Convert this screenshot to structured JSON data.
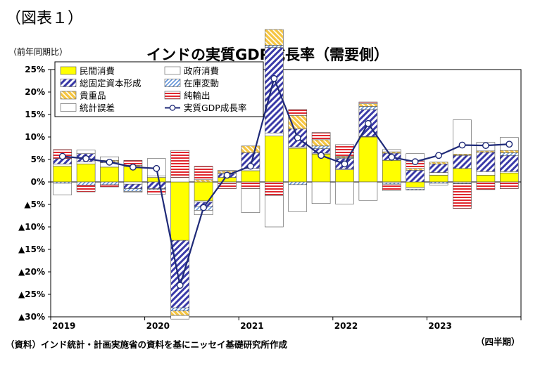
{
  "figure_label": "（図表１）",
  "chart_data": {
    "type": "bar",
    "title": "インドの実質GDP成長率（需要側）",
    "ylabel": "（前年同期比）",
    "xlabel": "（四半期）",
    "source": "（資料）インド統計・計画実施省の資料を基にニッセイ基礎研究所作成",
    "ylim": [
      -30,
      25
    ],
    "y_ticks": [
      25,
      20,
      15,
      10,
      5,
      0,
      -5,
      -10,
      -15,
      -20,
      -25,
      -30
    ],
    "y_tick_labels": [
      "25%",
      "20%",
      "15%",
      "10%",
      "5%",
      "0%",
      "▲5%",
      "▲10%",
      "▲15%",
      "▲20%",
      "▲25%",
      "▲30%"
    ],
    "x_year_labels": [
      {
        "label": "2019",
        "index": 0
      },
      {
        "label": "2020",
        "index": 4
      },
      {
        "label": "2021",
        "index": 8
      },
      {
        "label": "2022",
        "index": 12
      },
      {
        "label": "2023",
        "index": 16
      }
    ],
    "categories": [
      "2019Q1",
      "2019Q2",
      "2019Q3",
      "2019Q4",
      "2020Q1",
      "2020Q2",
      "2020Q3",
      "2020Q4",
      "2021Q1",
      "2021Q2",
      "2021Q3",
      "2021Q4",
      "2022Q1",
      "2022Q2",
      "2022Q3",
      "2022Q4",
      "2023Q1",
      "2023Q2",
      "2023Q3",
      "2023Q4"
    ],
    "legend_position": "top-left",
    "grid": false,
    "series": [
      {
        "name": "民間消費",
        "type": "stacked-bar",
        "color": "#ffff00",
        "pattern": "solid",
        "values": [
          3.5,
          4.0,
          3.3,
          3.4,
          1.0,
          -13.0,
          -4.2,
          1.0,
          2.5,
          10.2,
          7.5,
          6.2,
          2.7,
          10.0,
          4.8,
          -1.2,
          1.5,
          3.0,
          1.5,
          2.0
        ]
      },
      {
        "name": "政府消費",
        "type": "stacked-bar",
        "color": "#ffffff",
        "pattern": "outline",
        "values": [
          0.5,
          0.5,
          1.0,
          -0.5,
          0.3,
          1.0,
          -0.3,
          -0.3,
          0.5,
          0.7,
          0.3,
          0.2,
          0.2,
          0.1,
          -0.2,
          -0.4,
          0.6,
          -0.2,
          0.8,
          0.3
        ]
      },
      {
        "name": "総固定資本形成",
        "type": "stacked-bar",
        "color": "#3a3aa8",
        "pattern": "hatch-blue",
        "values": [
          1.2,
          1.8,
          0.2,
          -1.0,
          -1.5,
          -15.0,
          -1.0,
          0.8,
          3.5,
          19.0,
          4.0,
          1.0,
          2.3,
          6.0,
          1.6,
          2.6,
          1.9,
          2.9,
          4.3,
          3.6
        ]
      },
      {
        "name": "在庫変動",
        "type": "stacked-bar",
        "color": "#5a8fd8",
        "pattern": "hatch-light",
        "values": [
          -0.3,
          -0.7,
          -0.6,
          -0.6,
          -0.2,
          -0.7,
          -0.8,
          0.2,
          0.0,
          0.5,
          -0.6,
          0.6,
          0.2,
          0.7,
          -0.3,
          -0.2,
          -0.3,
          -0.2,
          0.0,
          0.6
        ]
      },
      {
        "name": "貴重品",
        "type": "stacked-bar",
        "color": "#f5c542",
        "pattern": "hatch-gold",
        "values": [
          0.0,
          0.0,
          0.3,
          0.3,
          0.0,
          -1.0,
          0.5,
          0.4,
          1.5,
          3.5,
          3.0,
          1.4,
          0.3,
          0.6,
          0.3,
          0.4,
          0.4,
          0.3,
          0.3,
          0.5
        ]
      },
      {
        "name": "純輸出",
        "type": "stacked-bar",
        "color": "#e0282f",
        "pattern": "hatch-red",
        "values": [
          2.0,
          -1.5,
          -0.5,
          1.1,
          -1.0,
          6.0,
          3.0,
          -1.2,
          -1.5,
          -3.0,
          1.3,
          1.6,
          2.6,
          0.4,
          -1.4,
          1.7,
          0.0,
          -5.5,
          -1.7,
          -1.5
        ]
      },
      {
        "name": "統計誤差",
        "type": "stacked-bar",
        "color": "#ffffff",
        "pattern": "outline",
        "values": [
          -2.6,
          0.8,
          0.8,
          -0.2,
          3.9,
          -0.8,
          -1.0,
          0.2,
          -5.3,
          -7.0,
          -6.0,
          -4.8,
          -4.9,
          -4.1,
          0.5,
          1.6,
          -0.4,
          7.6,
          1.9,
          2.9
        ]
      },
      {
        "name": "実質GDP成長率",
        "type": "line",
        "color": "#1f2a78",
        "values": [
          5.7,
          5.2,
          4.4,
          3.3,
          3.0,
          -23.0,
          -5.7,
          1.5,
          3.5,
          23.0,
          9.8,
          5.9,
          4.0,
          13.0,
          5.5,
          4.5,
          5.9,
          8.2,
          8.1,
          8.4
        ]
      }
    ]
  }
}
